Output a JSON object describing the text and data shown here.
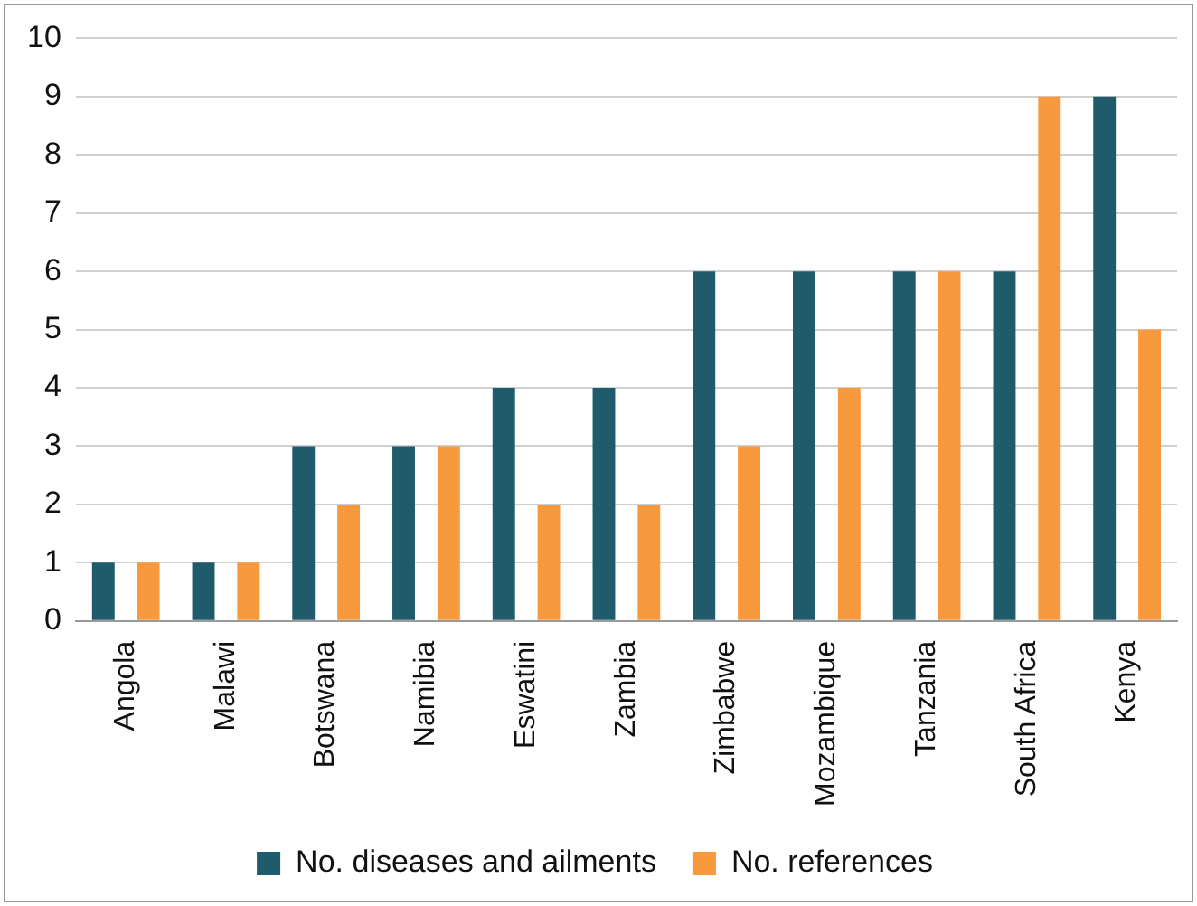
{
  "chart_data": {
    "type": "bar",
    "categories": [
      "Angola",
      "Malawi",
      "Botswana",
      "Namibia",
      "Eswatini",
      "Zambia",
      "Zimbabwe",
      "Mozambique",
      "Tanzania",
      "South Africa",
      "Kenya"
    ],
    "series": [
      {
        "name": "No. diseases and ailments",
        "color": "#1f5b6b",
        "values": [
          1,
          1,
          3,
          3,
          4,
          4,
          6,
          6,
          6,
          6,
          9
        ]
      },
      {
        "name": "No. references",
        "color": "#f79a3e",
        "values": [
          1,
          1,
          2,
          3,
          2,
          2,
          3,
          4,
          6,
          9,
          5
        ]
      }
    ],
    "ylim": [
      0,
      10
    ],
    "yticks": [
      0,
      1,
      2,
      3,
      4,
      5,
      6,
      7,
      8,
      9,
      10
    ],
    "grid": "y",
    "legend": "bottom"
  }
}
